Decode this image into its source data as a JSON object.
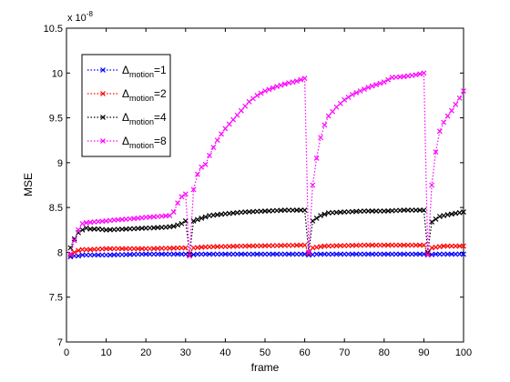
{
  "chart_data": {
    "type": "line",
    "xlabel": "frame",
    "ylabel": "MSE",
    "exponent_label": "x 10",
    "exponent_power": "-8",
    "xlim": [
      0,
      100
    ],
    "ylim": [
      7,
      10.5
    ],
    "xticks": [
      "0",
      "10",
      "20",
      "30",
      "40",
      "50",
      "60",
      "70",
      "80",
      "90",
      "100"
    ],
    "yticks": [
      "7",
      "7.5",
      "8",
      "8.5",
      "9",
      "9.5",
      "10",
      "10.5"
    ],
    "legend_position": "top-left",
    "legend": [
      {
        "base": "Δ",
        "sub": "motion",
        "suffix": "=1"
      },
      {
        "base": "Δ",
        "sub": "motion",
        "suffix": "=2"
      },
      {
        "base": "Δ",
        "sub": "motion",
        "suffix": "=4"
      },
      {
        "base": "Δ",
        "sub": "motion",
        "suffix": "=8"
      }
    ],
    "series": [
      {
        "color": "#0000ff",
        "points": [
          [
            1,
            7.95
          ],
          [
            2,
            7.96
          ],
          [
            3,
            7.96
          ],
          [
            4,
            7.97
          ],
          [
            6,
            7.97
          ],
          [
            10,
            7.97
          ],
          [
            20,
            7.98
          ],
          [
            30,
            7.98
          ],
          [
            31,
            7.97
          ],
          [
            33,
            7.98
          ],
          [
            45,
            7.98
          ],
          [
            60,
            7.98
          ],
          [
            61,
            7.97
          ],
          [
            63,
            7.98
          ],
          [
            75,
            7.98
          ],
          [
            90,
            7.98
          ],
          [
            91,
            7.97
          ],
          [
            93,
            7.98
          ],
          [
            100,
            7.98
          ]
        ]
      },
      {
        "color": "#ff0000",
        "points": [
          [
            1,
            7.97
          ],
          [
            2,
            8.0
          ],
          [
            3,
            8.02
          ],
          [
            4,
            8.03
          ],
          [
            6,
            8.03
          ],
          [
            10,
            8.04
          ],
          [
            20,
            8.04
          ],
          [
            30,
            8.05
          ],
          [
            31,
            7.98
          ],
          [
            32,
            8.05
          ],
          [
            35,
            8.06
          ],
          [
            45,
            8.07
          ],
          [
            60,
            8.08
          ],
          [
            61,
            7.99
          ],
          [
            62,
            8.05
          ],
          [
            65,
            8.07
          ],
          [
            75,
            8.08
          ],
          [
            90,
            8.08
          ],
          [
            91,
            7.99
          ],
          [
            92,
            8.05
          ],
          [
            95,
            8.07
          ],
          [
            100,
            8.07
          ]
        ]
      },
      {
        "color": "#000000",
        "points": [
          [
            1,
            8.05
          ],
          [
            2,
            8.15
          ],
          [
            3,
            8.22
          ],
          [
            4,
            8.25
          ],
          [
            5,
            8.27
          ],
          [
            6,
            8.26
          ],
          [
            8,
            8.26
          ],
          [
            10,
            8.25
          ],
          [
            15,
            8.26
          ],
          [
            20,
            8.27
          ],
          [
            25,
            8.28
          ],
          [
            27,
            8.29
          ],
          [
            29,
            8.32
          ],
          [
            30,
            8.35
          ],
          [
            31,
            7.98
          ],
          [
            32,
            8.35
          ],
          [
            34,
            8.38
          ],
          [
            36,
            8.41
          ],
          [
            40,
            8.43
          ],
          [
            45,
            8.45
          ],
          [
            50,
            8.46
          ],
          [
            55,
            8.47
          ],
          [
            60,
            8.47
          ],
          [
            61,
            8.0
          ],
          [
            62,
            8.35
          ],
          [
            64,
            8.41
          ],
          [
            66,
            8.44
          ],
          [
            70,
            8.45
          ],
          [
            75,
            8.46
          ],
          [
            80,
            8.46
          ],
          [
            85,
            8.47
          ],
          [
            90,
            8.47
          ],
          [
            91,
            8.0
          ],
          [
            92,
            8.34
          ],
          [
            94,
            8.4
          ],
          [
            96,
            8.42
          ],
          [
            100,
            8.45
          ]
        ]
      },
      {
        "color": "#ff00ff",
        "points": [
          [
            1,
            7.98
          ],
          [
            2,
            8.13
          ],
          [
            3,
            8.25
          ],
          [
            4,
            8.32
          ],
          [
            5,
            8.33
          ],
          [
            7,
            8.34
          ],
          [
            10,
            8.35
          ],
          [
            12,
            8.36
          ],
          [
            15,
            8.37
          ],
          [
            18,
            8.38
          ],
          [
            20,
            8.39
          ],
          [
            23,
            8.4
          ],
          [
            26,
            8.41
          ],
          [
            27,
            8.45
          ],
          [
            28,
            8.55
          ],
          [
            29,
            8.62
          ],
          [
            30,
            8.65
          ],
          [
            31,
            7.96
          ],
          [
            32,
            8.7
          ],
          [
            33,
            8.87
          ],
          [
            34,
            8.95
          ],
          [
            35,
            8.98
          ],
          [
            36,
            9.08
          ],
          [
            37,
            9.17
          ],
          [
            38,
            9.25
          ],
          [
            39,
            9.32
          ],
          [
            40,
            9.38
          ],
          [
            42,
            9.48
          ],
          [
            44,
            9.58
          ],
          [
            46,
            9.68
          ],
          [
            48,
            9.75
          ],
          [
            50,
            9.8
          ],
          [
            53,
            9.85
          ],
          [
            56,
            9.89
          ],
          [
            58,
            9.91
          ],
          [
            60,
            9.94
          ],
          [
            61,
            8.0
          ],
          [
            62,
            8.75
          ],
          [
            63,
            9.05
          ],
          [
            64,
            9.28
          ],
          [
            65,
            9.42
          ],
          [
            66,
            9.52
          ],
          [
            68,
            9.62
          ],
          [
            70,
            9.7
          ],
          [
            72,
            9.76
          ],
          [
            74,
            9.8
          ],
          [
            76,
            9.84
          ],
          [
            78,
            9.87
          ],
          [
            80,
            9.9
          ],
          [
            82,
            9.95
          ],
          [
            85,
            9.96
          ],
          [
            88,
            9.98
          ],
          [
            90,
            10.0
          ],
          [
            91,
            7.97
          ],
          [
            92,
            8.75
          ],
          [
            93,
            9.12
          ],
          [
            94,
            9.35
          ],
          [
            95,
            9.45
          ],
          [
            96,
            9.52
          ],
          [
            97,
            9.58
          ],
          [
            98,
            9.65
          ],
          [
            99,
            9.72
          ],
          [
            100,
            9.8
          ]
        ]
      }
    ]
  }
}
